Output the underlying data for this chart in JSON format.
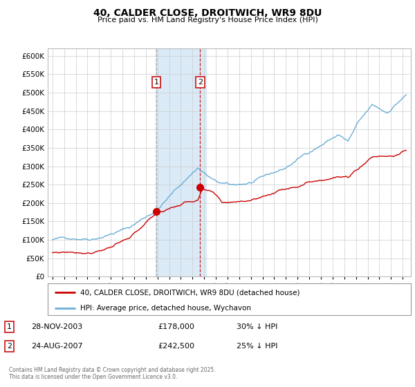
{
  "title": "40, CALDER CLOSE, DROITWICH, WR9 8DU",
  "subtitle": "Price paid vs. HM Land Registry's House Price Index (HPI)",
  "legend_line1": "40, CALDER CLOSE, DROITWICH, WR9 8DU (detached house)",
  "legend_line2": "HPI: Average price, detached house, Wychavon",
  "annotation1_date": "28-NOV-2003",
  "annotation1_price": "£178,000",
  "annotation1_hpi": "30% ↓ HPI",
  "annotation2_date": "24-AUG-2007",
  "annotation2_price": "£242,500",
  "annotation2_hpi": "25% ↓ HPI",
  "footer": "Contains HM Land Registry data © Crown copyright and database right 2025.\nThis data is licensed under the Open Government Licence v3.0.",
  "hpi_color": "#6aaed6",
  "price_color": "#cc0000",
  "highlight_color": "#daeaf7",
  "annotation_box_color": "#cc2222",
  "sale1_dashed_color": "#aaaaaa",
  "sale2_dashed_color": "#cc2222",
  "ylim": [
    0,
    620000
  ],
  "yticks": [
    0,
    50000,
    100000,
    150000,
    200000,
    250000,
    300000,
    350000,
    400000,
    450000,
    500000,
    550000,
    600000
  ],
  "sale1_x": 2003.9,
  "sale1_y": 178000,
  "sale2_x": 2007.65,
  "sale2_y": 242500,
  "xmin": 1994.6,
  "xmax": 2025.7
}
